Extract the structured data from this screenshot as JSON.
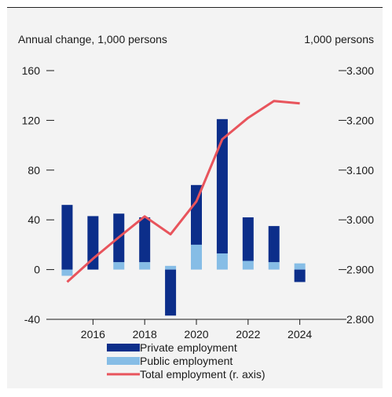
{
  "chart_data": {
    "type": "bar",
    "left_axis_label": "Annual change, 1,000 persons",
    "right_axis_label": "1,000 persons",
    "left_ylim": [
      -40,
      160
    ],
    "left_ticks": [
      "160",
      "120",
      "80",
      "40",
      "0",
      "-40"
    ],
    "left_tick_values": [
      160,
      120,
      80,
      40,
      0,
      -40
    ],
    "right_ylim": [
      2800,
      3300
    ],
    "right_ticks": [
      "3.300",
      "3.200",
      "3.100",
      "3.000",
      "2.900",
      "2.800"
    ],
    "right_tick_values": [
      3300,
      3200,
      3100,
      3000,
      2900,
      2800
    ],
    "x": [
      2015,
      2016,
      2017,
      2018,
      2019,
      2020,
      2021,
      2022,
      2023,
      2024,
      2025
    ],
    "x_tick_labels": [
      {
        "year": 2016,
        "label": "2016"
      },
      {
        "year": 2018,
        "label": "2018"
      },
      {
        "year": 2020,
        "label": "2020"
      },
      {
        "year": 2022,
        "label": "2022"
      },
      {
        "year": 2024,
        "label": "2024"
      }
    ],
    "grid": false,
    "legend_position": "bottom",
    "series": [
      {
        "name": "Private employment",
        "kind": "bar",
        "axis": "left",
        "color": "#0c2e8a",
        "values": [
          52,
          43,
          39,
          36,
          -37,
          48,
          108,
          35,
          29,
          -10,
          null
        ]
      },
      {
        "name": "Public employment",
        "kind": "bar",
        "axis": "left",
        "color": "#86bde6",
        "values": [
          -5,
          0,
          6,
          6,
          3,
          20,
          13,
          7,
          6,
          5,
          null
        ]
      },
      {
        "name": "Total employment (r. axis)",
        "kind": "line",
        "axis": "right",
        "color": "#e8545c",
        "values": [
          2875,
          2922,
          2965,
          3007,
          2971,
          3037,
          3162,
          3205,
          3239,
          3234,
          null
        ]
      }
    ]
  }
}
